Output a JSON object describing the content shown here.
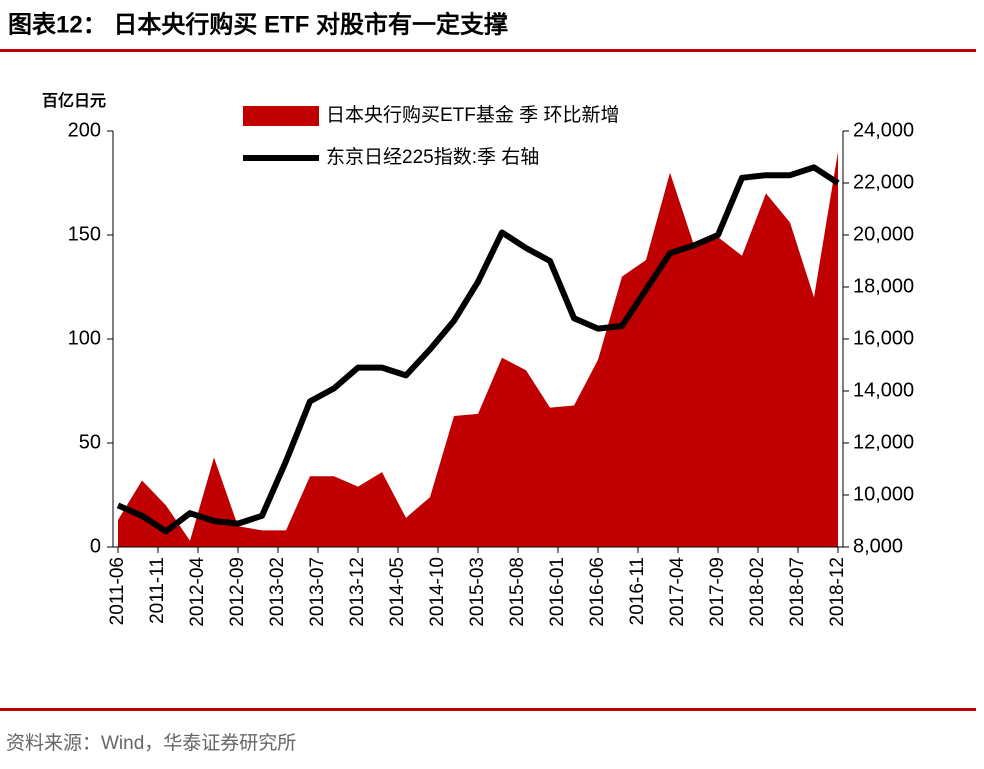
{
  "header": {
    "title": "图表12： 日本央行购买 ETF 对股市有一定支撑"
  },
  "footer": {
    "source": "资料来源：Wind，华泰证券研究所"
  },
  "chart_data": {
    "type": "area",
    "y_label": "百亿日元",
    "x": [
      "2011-06",
      "2011-09",
      "2011-12",
      "2012-03",
      "2012-06",
      "2012-09",
      "2012-12",
      "2013-03",
      "2013-06",
      "2013-09",
      "2013-12",
      "2014-03",
      "2014-06",
      "2014-09",
      "2014-12",
      "2015-03",
      "2015-06",
      "2015-09",
      "2015-12",
      "2016-03",
      "2016-06",
      "2016-09",
      "2016-12",
      "2017-03",
      "2017-06",
      "2017-09",
      "2017-12",
      "2018-03",
      "2018-06",
      "2018-09",
      "2018-12"
    ],
    "xlim": [
      "2011-06",
      "2018-12"
    ],
    "xticks": [
      "2011-06",
      "2011-11",
      "2012-04",
      "2012-09",
      "2013-02",
      "2013-07",
      "2013-12",
      "2014-05",
      "2014-10",
      "2015-03",
      "2015-08",
      "2016-01",
      "2016-06",
      "2016-11",
      "2017-04",
      "2017-09",
      "2018-02",
      "2018-07",
      "2018-12"
    ],
    "ylim": [
      0,
      200
    ],
    "yticks": [
      0,
      50,
      100,
      150,
      200
    ],
    "y2lim": [
      8000,
      24000
    ],
    "y2ticks": [
      {
        "value": 8000,
        "label": "8,000"
      },
      {
        "value": 10000,
        "label": "10,000"
      },
      {
        "value": 12000,
        "label": "12,000"
      },
      {
        "value": 14000,
        "label": "14,000"
      },
      {
        "value": 16000,
        "label": "16,000"
      },
      {
        "value": 18000,
        "label": "18,000"
      },
      {
        "value": 20000,
        "label": "20,000"
      },
      {
        "value": 22000,
        "label": "22,000"
      },
      {
        "value": 24000,
        "label": "24,000"
      }
    ],
    "series": [
      {
        "name": "日本央行购买ETF基金 季 环比新增",
        "type": "area",
        "color": "#c00000",
        "values": [
          13,
          32,
          20,
          3,
          43,
          10,
          8,
          8,
          34,
          34,
          29,
          36,
          14,
          24,
          63,
          64,
          91,
          85,
          67,
          68,
          90,
          130,
          138,
          180,
          145,
          149,
          140,
          170,
          156,
          120,
          190
        ]
      },
      {
        "name": "东京日经225指数:季 右轴",
        "type": "line",
        "axis": "y2",
        "color": "#000000",
        "values": [
          9600,
          9200,
          8600,
          9300,
          9000,
          8900,
          9200,
          11300,
          13600,
          14100,
          14900,
          14900,
          14600,
          15600,
          16700,
          18200,
          20100,
          19500,
          19000,
          16800,
          16400,
          16500,
          17900,
          19300,
          19600,
          20000,
          22200,
          22300,
          22300,
          22600,
          22000
        ]
      }
    ]
  }
}
